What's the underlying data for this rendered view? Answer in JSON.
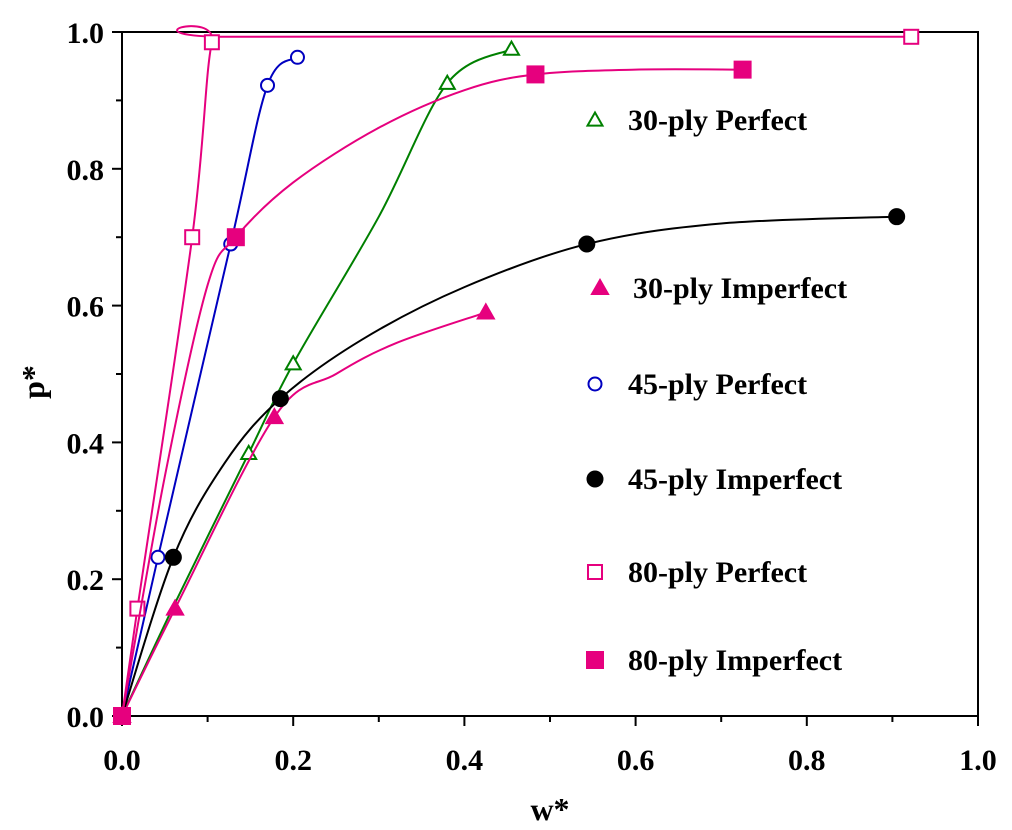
{
  "chart_data": {
    "type": "line",
    "xlabel": "w*",
    "ylabel": "p*",
    "xlim": [
      0.0,
      1.0
    ],
    "ylim": [
      0.0,
      1.0
    ],
    "x_ticks": [
      "0.0",
      "0.2",
      "0.4",
      "0.6",
      "0.8",
      "1.0"
    ],
    "y_ticks": [
      "0.0",
      "0.2",
      "0.4",
      "0.6",
      "0.8",
      "1.0"
    ],
    "grid": false,
    "legend_position": "right",
    "series": [
      {
        "name": "30-ply Perfect",
        "color": "#008000",
        "marker": "triangle",
        "filled": false,
        "markers": [
          [
            0,
            0
          ],
          [
            0.148,
            0.384
          ],
          [
            0.2,
            0.515
          ],
          [
            0.38,
            0.925
          ],
          [
            0.455,
            0.975
          ]
        ],
        "curve": [
          [
            0,
            0
          ],
          [
            0.06,
            0.16
          ],
          [
            0.148,
            0.384
          ],
          [
            0.2,
            0.515
          ],
          [
            0.3,
            0.73
          ],
          [
            0.38,
            0.925
          ],
          [
            0.455,
            0.975
          ]
        ]
      },
      {
        "name": "30-ply Imperfect",
        "color": "#e6007e",
        "marker": "triangle",
        "filled": true,
        "markers": [
          [
            0,
            0
          ],
          [
            0.062,
            0.157
          ],
          [
            0.178,
            0.437
          ],
          [
            0.425,
            0.59
          ]
        ],
        "curve": [
          [
            0,
            0
          ],
          [
            0.062,
            0.157
          ],
          [
            0.178,
            0.437
          ],
          [
            0.25,
            0.5
          ],
          [
            0.32,
            0.545
          ],
          [
            0.425,
            0.59
          ]
        ]
      },
      {
        "name": "45-ply Perfect",
        "color": "#0000c0",
        "marker": "circle",
        "filled": false,
        "markers": [
          [
            0,
            0
          ],
          [
            0.042,
            0.232
          ],
          [
            0.127,
            0.69
          ],
          [
            0.17,
            0.922
          ],
          [
            0.205,
            0.963
          ]
        ],
        "curve": [
          [
            0,
            0
          ],
          [
            0.042,
            0.232
          ],
          [
            0.127,
            0.69
          ],
          [
            0.17,
            0.922
          ],
          [
            0.205,
            0.963
          ]
        ]
      },
      {
        "name": "45-ply Imperfect",
        "color": "#000000",
        "marker": "circle",
        "filled": true,
        "markers": [
          [
            0,
            0
          ],
          [
            0.06,
            0.232
          ],
          [
            0.185,
            0.464
          ],
          [
            0.543,
            0.69
          ],
          [
            0.905,
            0.73
          ]
        ],
        "curve": [
          [
            0,
            0
          ],
          [
            0.06,
            0.232
          ],
          [
            0.12,
            0.37
          ],
          [
            0.185,
            0.464
          ],
          [
            0.28,
            0.55
          ],
          [
            0.4,
            0.627
          ],
          [
            0.543,
            0.69
          ],
          [
            0.7,
            0.72
          ],
          [
            0.905,
            0.73
          ]
        ]
      },
      {
        "name": "80-ply Perfect",
        "color": "#e6007e",
        "marker": "square",
        "filled": false,
        "markers": [
          [
            0,
            0
          ],
          [
            0.018,
            0.157
          ],
          [
            0.082,
            0.7
          ],
          [
            0.105,
            0.985
          ],
          [
            0.922,
            0.993
          ]
        ],
        "curve": [
          [
            0,
            0
          ],
          [
            0.018,
            0.157
          ],
          [
            0.082,
            0.7
          ],
          [
            0.105,
            0.985
          ],
          [
            0.13,
            0.993
          ],
          [
            0.922,
            0.993
          ]
        ]
      },
      {
        "name": "80-ply Imperfect",
        "color": "#e6007e",
        "marker": "square",
        "filled": true,
        "markers": [
          [
            0,
            0
          ],
          [
            0.133,
            0.7
          ],
          [
            0.483,
            0.938
          ],
          [
            0.725,
            0.945
          ]
        ],
        "curve": [
          [
            0,
            0
          ],
          [
            0.05,
            0.35
          ],
          [
            0.1,
            0.63
          ],
          [
            0.133,
            0.7
          ],
          [
            0.2,
            0.78
          ],
          [
            0.3,
            0.86
          ],
          [
            0.4,
            0.915
          ],
          [
            0.483,
            0.938
          ],
          [
            0.6,
            0.945
          ],
          [
            0.725,
            0.945
          ]
        ]
      }
    ]
  }
}
